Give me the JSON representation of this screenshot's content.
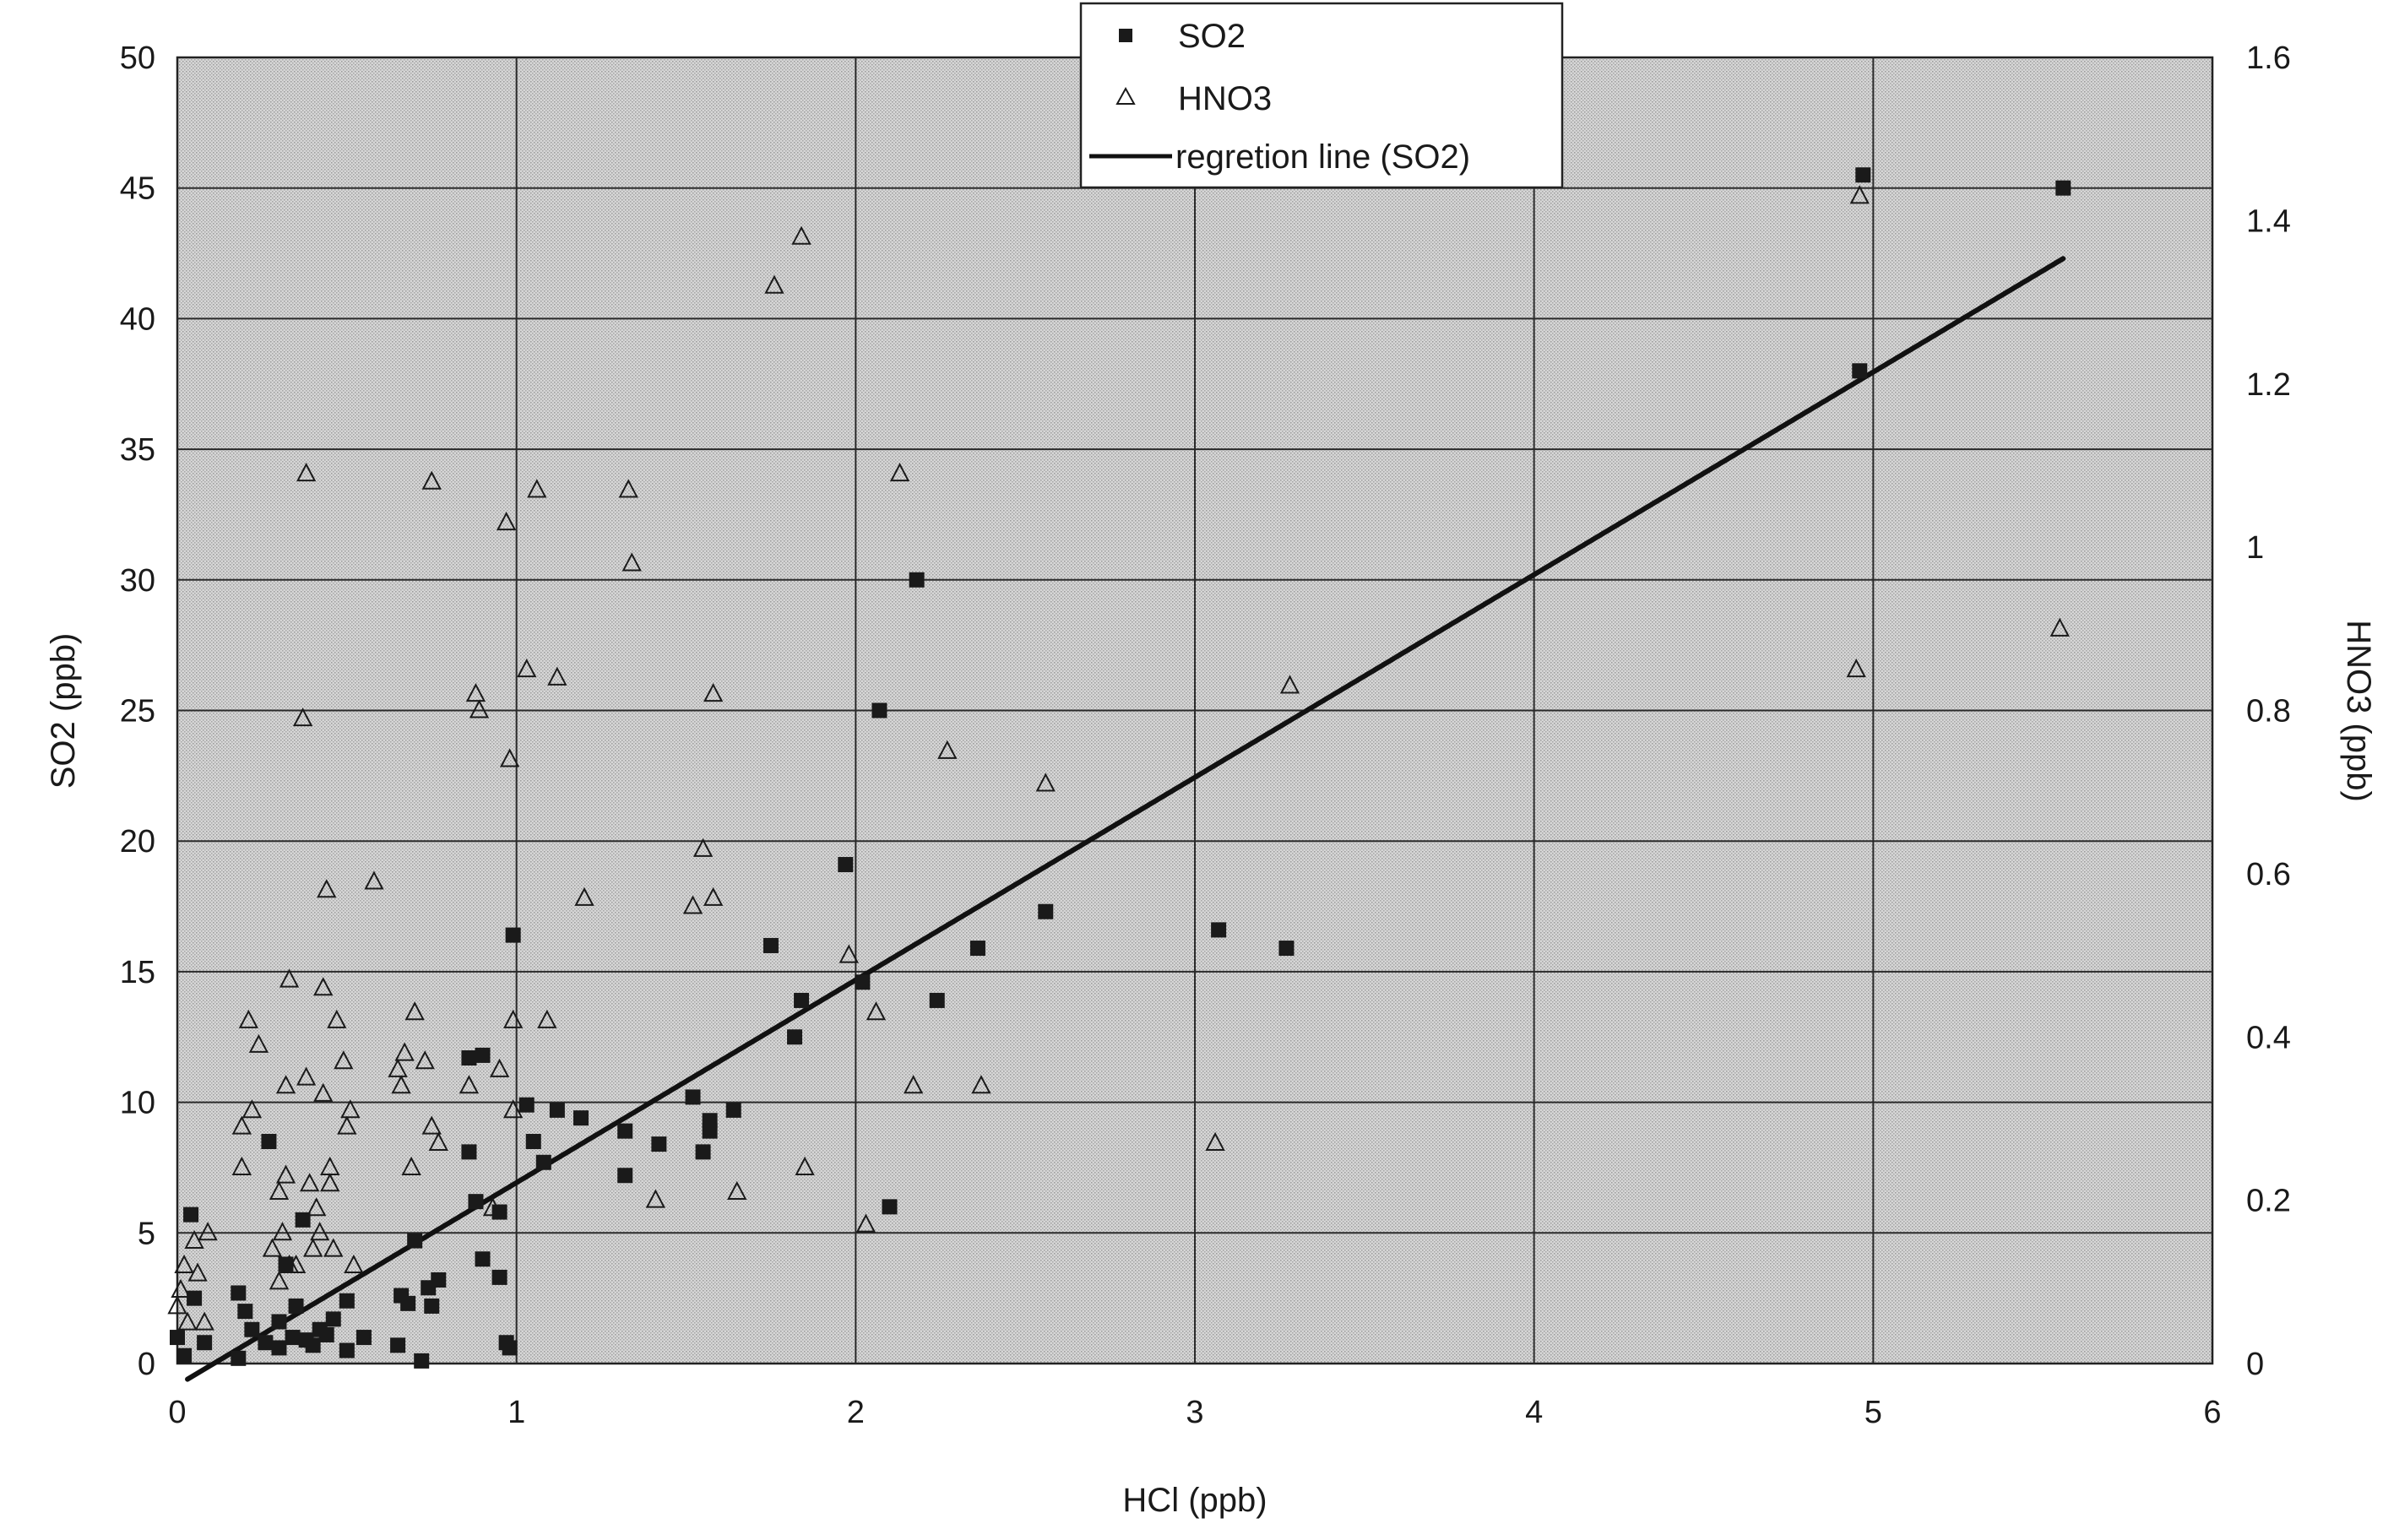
{
  "chart_data": {
    "type": "scatter",
    "xlabel": "HCl (ppb)",
    "ylabel": "SO2 (ppb)",
    "y2label": "HNO3 (ppb)",
    "xlim": [
      0,
      6
    ],
    "ylim": [
      0,
      50
    ],
    "y2lim": [
      0,
      1.6
    ],
    "xticks": [
      "0",
      "1",
      "2",
      "3",
      "4",
      "5",
      "6"
    ],
    "yticks": [
      "0",
      "5",
      "10",
      "15",
      "20",
      "25",
      "30",
      "35",
      "40",
      "45",
      "50"
    ],
    "y2ticks": [
      "0",
      "0.2",
      "0.4",
      "0.6",
      "0.8",
      "1",
      "1.2",
      "1.4",
      "1.6"
    ],
    "grid": true,
    "legend_position": "top-center",
    "colors": {
      "plot_bg": "#d4d4d4",
      "marker": "#1a1a1a",
      "line": "#111111"
    },
    "series": [
      {
        "name": "SO2",
        "marker": "square",
        "axis": "left",
        "points": [
          [
            0.0,
            1.0
          ],
          [
            0.02,
            0.3
          ],
          [
            0.04,
            5.7
          ],
          [
            0.05,
            2.5
          ],
          [
            0.08,
            0.8
          ],
          [
            0.18,
            2.7
          ],
          [
            0.18,
            0.2
          ],
          [
            0.2,
            2.0
          ],
          [
            0.22,
            1.3
          ],
          [
            0.26,
            0.8
          ],
          [
            0.27,
            8.5
          ],
          [
            0.3,
            0.6
          ],
          [
            0.3,
            1.6
          ],
          [
            0.32,
            3.8
          ],
          [
            0.34,
            1.0
          ],
          [
            0.35,
            2.2
          ],
          [
            0.37,
            5.5
          ],
          [
            0.38,
            0.9
          ],
          [
            0.4,
            0.7
          ],
          [
            0.42,
            1.3
          ],
          [
            0.44,
            1.1
          ],
          [
            0.46,
            1.7
          ],
          [
            0.5,
            0.5
          ],
          [
            0.5,
            2.4
          ],
          [
            0.55,
            1.0
          ],
          [
            0.65,
            0.7
          ],
          [
            0.66,
            2.6
          ],
          [
            0.68,
            2.3
          ],
          [
            0.7,
            4.7
          ],
          [
            0.72,
            0.1
          ],
          [
            0.74,
            2.9
          ],
          [
            0.75,
            2.2
          ],
          [
            0.77,
            3.2
          ],
          [
            0.86,
            8.1
          ],
          [
            0.86,
            11.7
          ],
          [
            0.88,
            6.2
          ],
          [
            0.9,
            11.8
          ],
          [
            0.9,
            4.0
          ],
          [
            0.95,
            5.8
          ],
          [
            0.95,
            3.3
          ],
          [
            0.97,
            0.8
          ],
          [
            0.98,
            0.6
          ],
          [
            0.99,
            16.4
          ],
          [
            1.03,
            9.9
          ],
          [
            1.05,
            8.5
          ],
          [
            1.08,
            7.7
          ],
          [
            1.12,
            9.7
          ],
          [
            1.19,
            9.4
          ],
          [
            1.32,
            7.2
          ],
          [
            1.32,
            8.9
          ],
          [
            1.42,
            8.4
          ],
          [
            1.52,
            10.2
          ],
          [
            1.55,
            8.1
          ],
          [
            1.57,
            9.3
          ],
          [
            1.57,
            8.9
          ],
          [
            1.64,
            9.7
          ],
          [
            1.75,
            16.0
          ],
          [
            1.82,
            12.5
          ],
          [
            1.84,
            13.9
          ],
          [
            1.97,
            19.1
          ],
          [
            2.02,
            14.6
          ],
          [
            2.07,
            25.0
          ],
          [
            2.1,
            6.0
          ],
          [
            2.18,
            30.0
          ],
          [
            2.24,
            13.9
          ],
          [
            2.36,
            15.9
          ],
          [
            2.56,
            17.3
          ],
          [
            3.07,
            16.6
          ],
          [
            3.27,
            15.9
          ],
          [
            4.96,
            38.0
          ],
          [
            4.97,
            45.5
          ],
          [
            5.56,
            45.0
          ]
        ]
      },
      {
        "name": "HNO3",
        "marker": "triangle",
        "axis": "right",
        "points": [
          [
            0.0,
            0.07
          ],
          [
            0.01,
            0.09
          ],
          [
            0.02,
            0.12
          ],
          [
            0.03,
            0.05
          ],
          [
            0.05,
            0.15
          ],
          [
            0.06,
            0.11
          ],
          [
            0.08,
            0.05
          ],
          [
            0.09,
            0.16
          ],
          [
            0.19,
            0.24
          ],
          [
            0.19,
            0.29
          ],
          [
            0.21,
            0.42
          ],
          [
            0.22,
            0.31
          ],
          [
            0.24,
            0.39
          ],
          [
            0.28,
            0.14
          ],
          [
            0.3,
            0.21
          ],
          [
            0.3,
            0.1
          ],
          [
            0.31,
            0.16
          ],
          [
            0.32,
            0.23
          ],
          [
            0.32,
            0.34
          ],
          [
            0.33,
            0.12
          ],
          [
            0.33,
            0.47
          ],
          [
            0.35,
            0.12
          ],
          [
            0.37,
            0.79
          ],
          [
            0.38,
            1.09
          ],
          [
            0.38,
            0.35
          ],
          [
            0.39,
            0.22
          ],
          [
            0.4,
            0.14
          ],
          [
            0.41,
            0.19
          ],
          [
            0.42,
            0.16
          ],
          [
            0.43,
            0.46
          ],
          [
            0.43,
            0.33
          ],
          [
            0.44,
            0.58
          ],
          [
            0.45,
            0.24
          ],
          [
            0.45,
            0.22
          ],
          [
            0.46,
            0.14
          ],
          [
            0.47,
            0.42
          ],
          [
            0.49,
            0.37
          ],
          [
            0.5,
            0.29
          ],
          [
            0.51,
            0.31
          ],
          [
            0.52,
            0.12
          ],
          [
            0.58,
            0.59
          ],
          [
            0.65,
            0.36
          ],
          [
            0.66,
            0.34
          ],
          [
            0.67,
            0.38
          ],
          [
            0.69,
            0.24
          ],
          [
            0.7,
            0.43
          ],
          [
            0.73,
            0.37
          ],
          [
            0.75,
            1.08
          ],
          [
            0.75,
            0.29
          ],
          [
            0.77,
            0.27
          ],
          [
            0.86,
            0.34
          ],
          [
            0.88,
            0.82
          ],
          [
            0.89,
            0.8
          ],
          [
            0.93,
            0.19
          ],
          [
            0.95,
            0.36
          ],
          [
            0.97,
            1.03
          ],
          [
            0.98,
            0.74
          ],
          [
            0.99,
            0.31
          ],
          [
            0.99,
            0.42
          ],
          [
            1.03,
            0.85
          ],
          [
            1.06,
            1.07
          ],
          [
            1.09,
            0.42
          ],
          [
            1.12,
            0.84
          ],
          [
            1.2,
            0.57
          ],
          [
            1.33,
            1.07
          ],
          [
            1.34,
            0.98
          ],
          [
            1.41,
            0.2
          ],
          [
            1.52,
            0.56
          ],
          [
            1.55,
            0.63
          ],
          [
            1.58,
            0.82
          ],
          [
            1.58,
            0.57
          ],
          [
            1.65,
            0.21
          ],
          [
            1.76,
            1.32
          ],
          [
            1.84,
            1.38
          ],
          [
            1.85,
            0.24
          ],
          [
            1.98,
            0.5
          ],
          [
            2.03,
            0.17
          ],
          [
            2.06,
            0.43
          ],
          [
            2.13,
            1.09
          ],
          [
            2.17,
            0.34
          ],
          [
            2.27,
            0.75
          ],
          [
            2.37,
            0.34
          ],
          [
            2.56,
            0.71
          ],
          [
            3.06,
            0.27
          ],
          [
            3.28,
            0.83
          ],
          [
            4.95,
            0.85
          ],
          [
            4.96,
            1.43
          ],
          [
            5.55,
            0.9
          ]
        ]
      },
      {
        "name": "regretion line (SO2)",
        "type": "line",
        "axis": "left",
        "points": [
          [
            0.03,
            -0.6
          ],
          [
            5.56,
            42.3
          ]
        ]
      }
    ]
  }
}
